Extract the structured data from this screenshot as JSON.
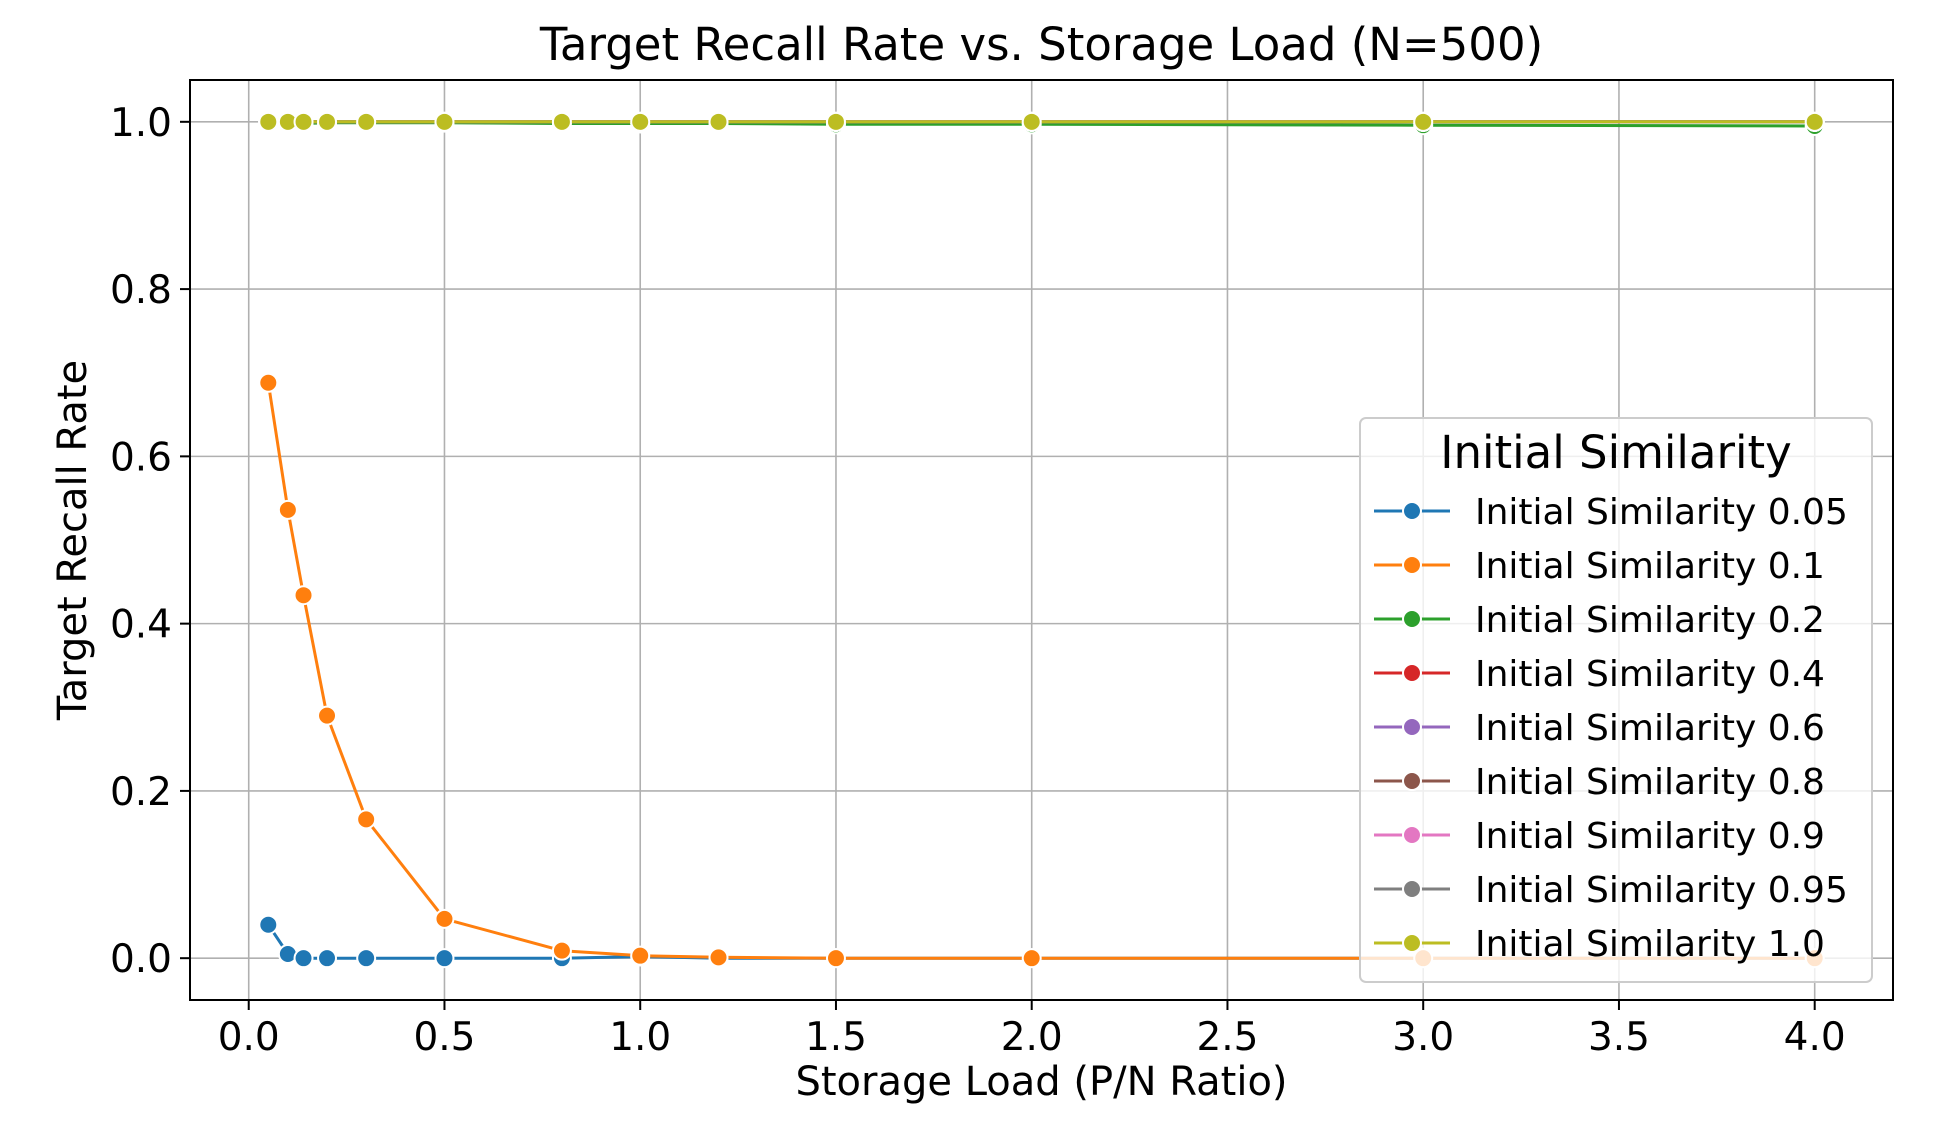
{
  "chart_data": {
    "type": "line",
    "title": "Target Recall Rate vs. Storage Load (N=500)",
    "xlabel": "Storage Load (P/N Ratio)",
    "ylabel": "Target Recall Rate",
    "xlim": [
      -0.15,
      4.2
    ],
    "ylim": [
      -0.05,
      1.05
    ],
    "xticks": [
      0.0,
      0.5,
      1.0,
      1.5,
      2.0,
      2.5,
      3.0,
      3.5,
      4.0
    ],
    "xtick_labels": [
      "0.0",
      "0.5",
      "1.0",
      "1.5",
      "2.0",
      "2.5",
      "3.0",
      "3.5",
      "4.0"
    ],
    "yticks": [
      0.0,
      0.2,
      0.4,
      0.6,
      0.8,
      1.0
    ],
    "ytick_labels": [
      "0.0",
      "0.2",
      "0.4",
      "0.6",
      "0.8",
      "1.0"
    ],
    "grid": true,
    "legend": {
      "title": "Initial Similarity",
      "placement": "center-right"
    },
    "x": [
      0.05,
      0.1,
      0.14,
      0.2,
      0.3,
      0.5,
      0.8,
      1.0,
      1.2,
      1.5,
      2.0,
      3.0,
      4.0
    ],
    "series": [
      {
        "name": "Initial Similarity 0.05",
        "color": "#1f77b4",
        "values": [
          0.04,
          0.005,
          0.0,
          0.0,
          0.0,
          0.0,
          0.0,
          0.002,
          0.0,
          0.0,
          0.0,
          0.0,
          0.0
        ]
      },
      {
        "name": "Initial Similarity 0.1",
        "color": "#ff7f0e",
        "values": [
          0.688,
          0.536,
          0.434,
          0.29,
          0.166,
          0.047,
          0.009,
          0.003,
          0.001,
          0.0,
          0.0,
          0.0,
          0.0
        ]
      },
      {
        "name": "Initial Similarity 0.2",
        "color": "#2ca02c",
        "values": [
          1.0,
          0.998,
          0.998,
          0.999,
          0.999,
          0.999,
          0.998,
          0.998,
          0.998,
          0.997,
          0.997,
          0.996,
          0.995
        ]
      },
      {
        "name": "Initial Similarity 0.4",
        "color": "#d62728",
        "values": [
          1.0,
          1.0,
          1.0,
          1.0,
          1.0,
          1.0,
          1.0,
          1.0,
          1.0,
          1.0,
          1.0,
          1.0,
          1.0
        ]
      },
      {
        "name": "Initial Similarity 0.6",
        "color": "#9467bd",
        "values": [
          1.0,
          1.0,
          1.0,
          1.0,
          1.0,
          1.0,
          1.0,
          1.0,
          1.0,
          1.0,
          1.0,
          1.0,
          1.0
        ]
      },
      {
        "name": "Initial Similarity 0.8",
        "color": "#8c564b",
        "values": [
          1.0,
          1.0,
          1.0,
          1.0,
          1.0,
          1.0,
          1.0,
          1.0,
          1.0,
          1.0,
          1.0,
          1.0,
          1.0
        ]
      },
      {
        "name": "Initial Similarity 0.9",
        "color": "#e377c2",
        "values": [
          1.0,
          1.0,
          1.0,
          1.0,
          1.0,
          1.0,
          1.0,
          1.0,
          1.0,
          1.0,
          1.0,
          1.0,
          1.0
        ]
      },
      {
        "name": "Initial Similarity 0.95",
        "color": "#7f7f7f",
        "values": [
          1.0,
          1.0,
          1.0,
          1.0,
          1.0,
          1.0,
          1.0,
          1.0,
          1.0,
          1.0,
          1.0,
          1.0,
          1.0
        ]
      },
      {
        "name": "Initial Similarity 1.0",
        "color": "#bcbd22",
        "values": [
          1.0,
          1.0,
          1.0,
          1.0,
          1.0,
          1.0,
          1.0,
          1.0,
          1.0,
          1.0,
          1.0,
          1.0,
          1.0
        ]
      }
    ]
  }
}
